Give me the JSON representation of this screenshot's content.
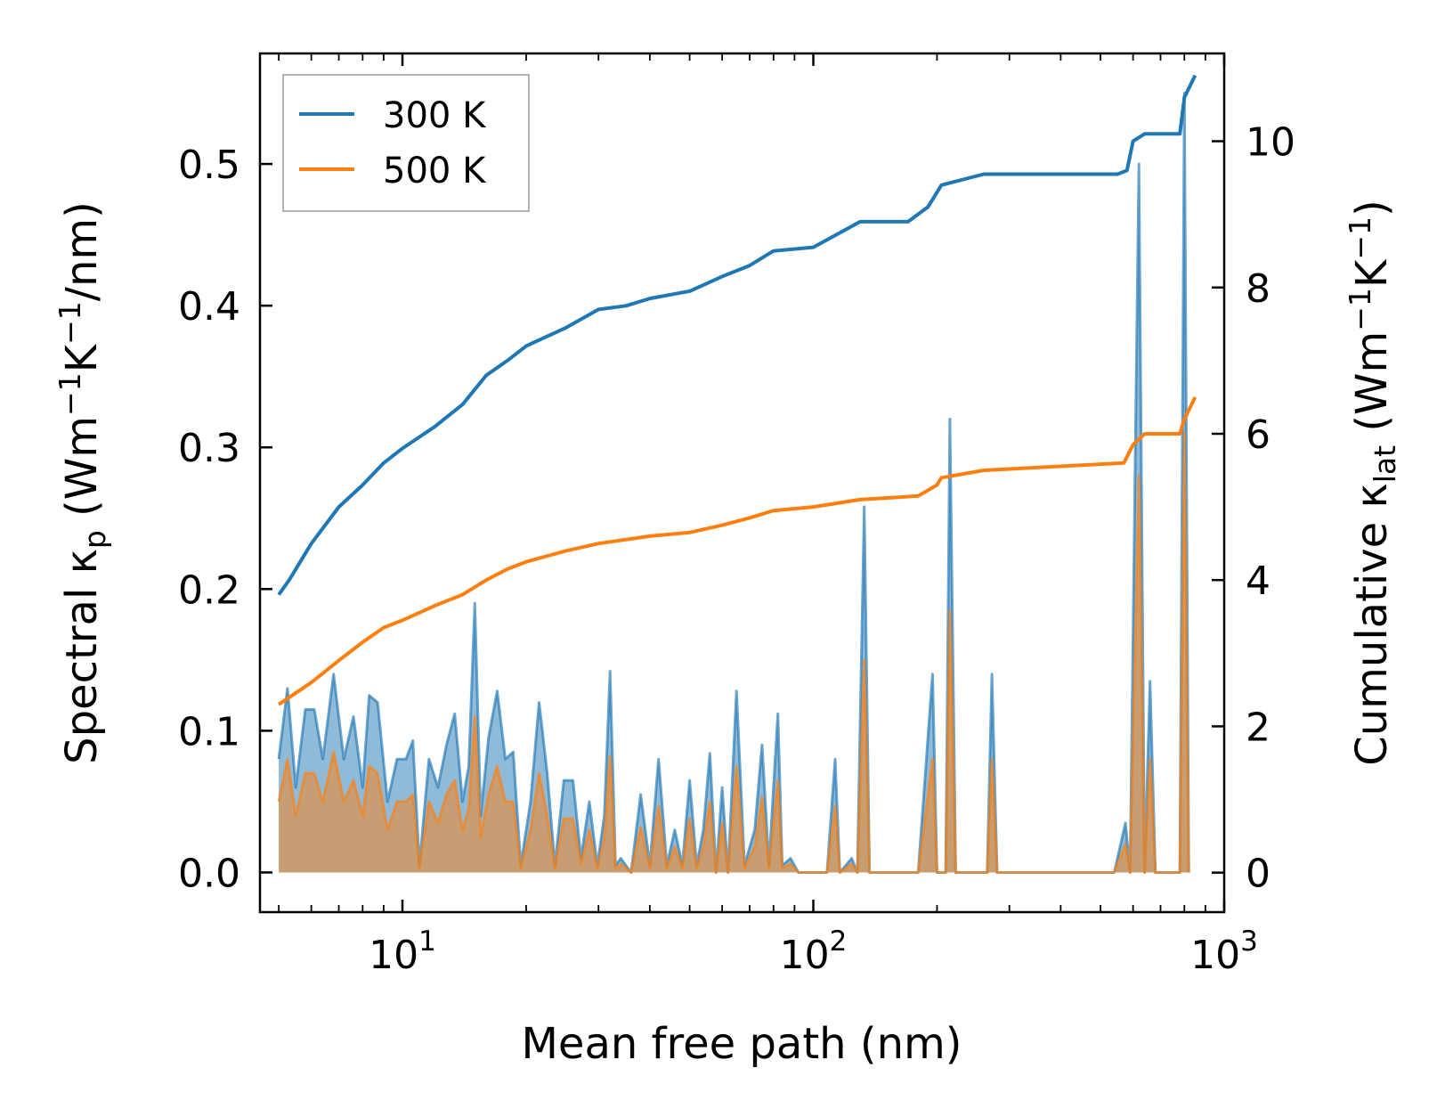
{
  "chart_data": {
    "type": "line",
    "xscale": "log",
    "xlim": [
      4.5,
      1000
    ],
    "ylim_left": [
      -0.028,
      0.578
    ],
    "ylim_right": [
      -0.54,
      11.2
    ],
    "xlabel": "Mean free path (nm)",
    "ylabel_left": {
      "pre": "Spectral κ",
      "sub": "p",
      "post": " (Wm",
      "sup1": "−1",
      "mid": "K",
      "sup2": "−1",
      "end": "/nm)"
    },
    "ylabel_right": {
      "pre": "Cumulative κ",
      "sub": "lat",
      "post": " (Wm",
      "sup1": "−1",
      "mid": "K",
      "sup2": "−1",
      "end": ")"
    },
    "x_ticks": [
      {
        "value": 10,
        "base": "10",
        "exp": "1"
      },
      {
        "value": 100,
        "base": "10",
        "exp": "2"
      },
      {
        "value": 1000,
        "base": "10",
        "exp": "3"
      }
    ],
    "y_ticks_left": [
      {
        "value": 0.0,
        "label": "0.0"
      },
      {
        "value": 0.1,
        "label": "0.1"
      },
      {
        "value": 0.2,
        "label": "0.2"
      },
      {
        "value": 0.3,
        "label": "0.3"
      },
      {
        "value": 0.4,
        "label": "0.4"
      },
      {
        "value": 0.5,
        "label": "0.5"
      }
    ],
    "y_ticks_right": [
      {
        "value": 0,
        "label": "0"
      },
      {
        "value": 2,
        "label": "2"
      },
      {
        "value": 4,
        "label": "4"
      },
      {
        "value": 6,
        "label": "6"
      },
      {
        "value": 8,
        "label": "8"
      },
      {
        "value": 10,
        "label": "10"
      }
    ],
    "legend": {
      "position": "upper-left",
      "entries": [
        "300 K",
        "500 K"
      ]
    },
    "series": [
      {
        "name": "300 K",
        "color": "#1f77b4",
        "cumulative": [
          [
            5,
            3.8
          ],
          [
            5.3,
            4.0
          ],
          [
            6,
            4.5
          ],
          [
            7,
            5.0
          ],
          [
            8,
            5.3
          ],
          [
            9,
            5.6
          ],
          [
            10,
            5.8
          ],
          [
            12,
            6.1
          ],
          [
            14,
            6.4
          ],
          [
            16,
            6.8
          ],
          [
            18,
            7.0
          ],
          [
            20,
            7.2
          ],
          [
            25,
            7.45
          ],
          [
            30,
            7.7
          ],
          [
            35,
            7.75
          ],
          [
            40,
            7.85
          ],
          [
            50,
            7.95
          ],
          [
            60,
            8.15
          ],
          [
            70,
            8.3
          ],
          [
            80,
            8.5
          ],
          [
            100,
            8.55
          ],
          [
            130,
            8.9
          ],
          [
            170,
            8.9
          ],
          [
            190,
            9.1
          ],
          [
            205,
            9.4
          ],
          [
            260,
            9.55
          ],
          [
            550,
            9.55
          ],
          [
            580,
            9.6
          ],
          [
            600,
            10.0
          ],
          [
            640,
            10.1
          ],
          [
            780,
            10.1
          ],
          [
            800,
            10.6
          ],
          [
            850,
            10.9
          ]
        ],
        "spectral": [
          [
            5,
            0.08
          ],
          [
            5.25,
            0.13
          ],
          [
            5.5,
            0.06
          ],
          [
            5.8,
            0.115
          ],
          [
            6.1,
            0.115
          ],
          [
            6.4,
            0.08
          ],
          [
            6.8,
            0.14
          ],
          [
            7.2,
            0.08
          ],
          [
            7.6,
            0.11
          ],
          [
            8,
            0.06
          ],
          [
            8.3,
            0.125
          ],
          [
            8.7,
            0.12
          ],
          [
            9.2,
            0.05
          ],
          [
            9.7,
            0.08
          ],
          [
            10.2,
            0.08
          ],
          [
            10.6,
            0.093
          ],
          [
            11,
            0.005
          ],
          [
            11.6,
            0.08
          ],
          [
            12.2,
            0.06
          ],
          [
            12.8,
            0.09
          ],
          [
            13.4,
            0.112
          ],
          [
            14,
            0.05
          ],
          [
            14.5,
            0.075
          ],
          [
            15,
            0.19
          ],
          [
            15.5,
            0.04
          ],
          [
            16.2,
            0.095
          ],
          [
            17,
            0.128
          ],
          [
            17.8,
            0.08
          ],
          [
            18.6,
            0.085
          ],
          [
            19.4,
            0.005
          ],
          [
            20.5,
            0.05
          ],
          [
            21.5,
            0.12
          ],
          [
            22.5,
            0.07
          ],
          [
            23.5,
            0.005
          ],
          [
            24.7,
            0.065
          ],
          [
            26,
            0.065
          ],
          [
            27.2,
            0.01
          ],
          [
            28.5,
            0.05
          ],
          [
            29.8,
            0.005
          ],
          [
            31,
            0.04
          ],
          [
            32,
            0.142
          ],
          [
            33,
            0.005
          ],
          [
            34,
            0.01
          ],
          [
            36,
            0.0
          ],
          [
            38,
            0.055
          ],
          [
            40,
            0.005
          ],
          [
            42,
            0.08
          ],
          [
            44,
            0.005
          ],
          [
            46,
            0.03
          ],
          [
            48,
            0.005
          ],
          [
            50,
            0.065
          ],
          [
            52,
            0.005
          ],
          [
            54,
            0.03
          ],
          [
            56,
            0.084
          ],
          [
            58,
            0.0
          ],
          [
            60,
            0.06
          ],
          [
            62,
            0.0
          ],
          [
            65,
            0.128
          ],
          [
            68,
            0.005
          ],
          [
            72,
            0.03
          ],
          [
            75,
            0.09
          ],
          [
            78,
            0.005
          ],
          [
            80,
            0.06
          ],
          [
            82,
            0.112
          ],
          [
            84,
            0.005
          ],
          [
            88,
            0.01
          ],
          [
            92,
            0.0
          ],
          [
            100,
            0.0
          ],
          [
            108,
            0.0
          ],
          [
            113,
            0.08
          ],
          [
            116,
            0.0
          ],
          [
            124,
            0.01
          ],
          [
            128,
            0.0
          ],
          [
            133,
            0.258
          ],
          [
            137,
            0.0
          ],
          [
            180,
            0.0
          ],
          [
            195,
            0.14
          ],
          [
            200,
            0.0
          ],
          [
            210,
            0.0
          ],
          [
            215,
            0.32
          ],
          [
            222,
            0.0
          ],
          [
            265,
            0.0
          ],
          [
            272,
            0.14
          ],
          [
            280,
            0.0
          ],
          [
            540,
            0.0
          ],
          [
            575,
            0.035
          ],
          [
            590,
            0.0
          ],
          [
            620,
            0.5
          ],
          [
            640,
            0.0
          ],
          [
            660,
            0.135
          ],
          [
            680,
            0.0
          ],
          [
            780,
            0.0
          ],
          [
            800,
            0.55
          ],
          [
            820,
            0.0
          ]
        ]
      },
      {
        "name": "500 K",
        "color": "#ff7f0e",
        "cumulative": [
          [
            5,
            2.3
          ],
          [
            6,
            2.6
          ],
          [
            7,
            2.9
          ],
          [
            8,
            3.15
          ],
          [
            9,
            3.35
          ],
          [
            10,
            3.45
          ],
          [
            12,
            3.65
          ],
          [
            14,
            3.8
          ],
          [
            16,
            4.0
          ],
          [
            18,
            4.15
          ],
          [
            20,
            4.25
          ],
          [
            25,
            4.4
          ],
          [
            30,
            4.5
          ],
          [
            40,
            4.6
          ],
          [
            50,
            4.65
          ],
          [
            60,
            4.75
          ],
          [
            70,
            4.85
          ],
          [
            80,
            4.95
          ],
          [
            100,
            5.0
          ],
          [
            130,
            5.1
          ],
          [
            180,
            5.15
          ],
          [
            200,
            5.3
          ],
          [
            205,
            5.4
          ],
          [
            260,
            5.5
          ],
          [
            570,
            5.6
          ],
          [
            600,
            5.85
          ],
          [
            640,
            6.0
          ],
          [
            780,
            6.0
          ],
          [
            800,
            6.2
          ],
          [
            850,
            6.5
          ]
        ],
        "spectral": [
          [
            5,
            0.05
          ],
          [
            5.25,
            0.08
          ],
          [
            5.5,
            0.04
          ],
          [
            5.8,
            0.07
          ],
          [
            6.1,
            0.07
          ],
          [
            6.4,
            0.05
          ],
          [
            6.8,
            0.085
          ],
          [
            7.2,
            0.05
          ],
          [
            7.6,
            0.065
          ],
          [
            8,
            0.04
          ],
          [
            8.3,
            0.075
          ],
          [
            8.7,
            0.07
          ],
          [
            9.2,
            0.03
          ],
          [
            9.7,
            0.05
          ],
          [
            10.2,
            0.05
          ],
          [
            10.6,
            0.055
          ],
          [
            11,
            0.003
          ],
          [
            11.6,
            0.05
          ],
          [
            12.2,
            0.035
          ],
          [
            12.8,
            0.055
          ],
          [
            13.4,
            0.065
          ],
          [
            14,
            0.03
          ],
          [
            14.5,
            0.045
          ],
          [
            15,
            0.11
          ],
          [
            15.5,
            0.025
          ],
          [
            16.2,
            0.055
          ],
          [
            17,
            0.075
          ],
          [
            17.8,
            0.05
          ],
          [
            18.6,
            0.05
          ],
          [
            19.4,
            0.003
          ],
          [
            20.5,
            0.03
          ],
          [
            21.5,
            0.07
          ],
          [
            22.5,
            0.04
          ],
          [
            23.5,
            0.003
          ],
          [
            24.7,
            0.038
          ],
          [
            26,
            0.038
          ],
          [
            27.2,
            0.006
          ],
          [
            28.5,
            0.03
          ],
          [
            29.8,
            0.003
          ],
          [
            31,
            0.024
          ],
          [
            32,
            0.082
          ],
          [
            33,
            0.003
          ],
          [
            34,
            0.006
          ],
          [
            36,
            0.0
          ],
          [
            38,
            0.032
          ],
          [
            40,
            0.003
          ],
          [
            42,
            0.047
          ],
          [
            44,
            0.003
          ],
          [
            46,
            0.018
          ],
          [
            48,
            0.003
          ],
          [
            50,
            0.038
          ],
          [
            52,
            0.003
          ],
          [
            54,
            0.018
          ],
          [
            56,
            0.05
          ],
          [
            58,
            0.0
          ],
          [
            60,
            0.035
          ],
          [
            62,
            0.0
          ],
          [
            65,
            0.075
          ],
          [
            68,
            0.003
          ],
          [
            72,
            0.018
          ],
          [
            75,
            0.053
          ],
          [
            78,
            0.003
          ],
          [
            80,
            0.035
          ],
          [
            82,
            0.065
          ],
          [
            84,
            0.003
          ],
          [
            88,
            0.006
          ],
          [
            92,
            0.0
          ],
          [
            100,
            0.0
          ],
          [
            108,
            0.0
          ],
          [
            113,
            0.047
          ],
          [
            116,
            0.0
          ],
          [
            124,
            0.006
          ],
          [
            128,
            0.0
          ],
          [
            133,
            0.15
          ],
          [
            137,
            0.0
          ],
          [
            180,
            0.0
          ],
          [
            195,
            0.08
          ],
          [
            200,
            0.0
          ],
          [
            210,
            0.0
          ],
          [
            215,
            0.185
          ],
          [
            222,
            0.0
          ],
          [
            265,
            0.0
          ],
          [
            272,
            0.08
          ],
          [
            280,
            0.0
          ],
          [
            540,
            0.0
          ],
          [
            575,
            0.02
          ],
          [
            590,
            0.0
          ],
          [
            620,
            0.28
          ],
          [
            640,
            0.0
          ],
          [
            660,
            0.08
          ],
          [
            680,
            0.0
          ],
          [
            780,
            0.0
          ],
          [
            800,
            0.31
          ],
          [
            820,
            0.0
          ]
        ]
      }
    ]
  }
}
